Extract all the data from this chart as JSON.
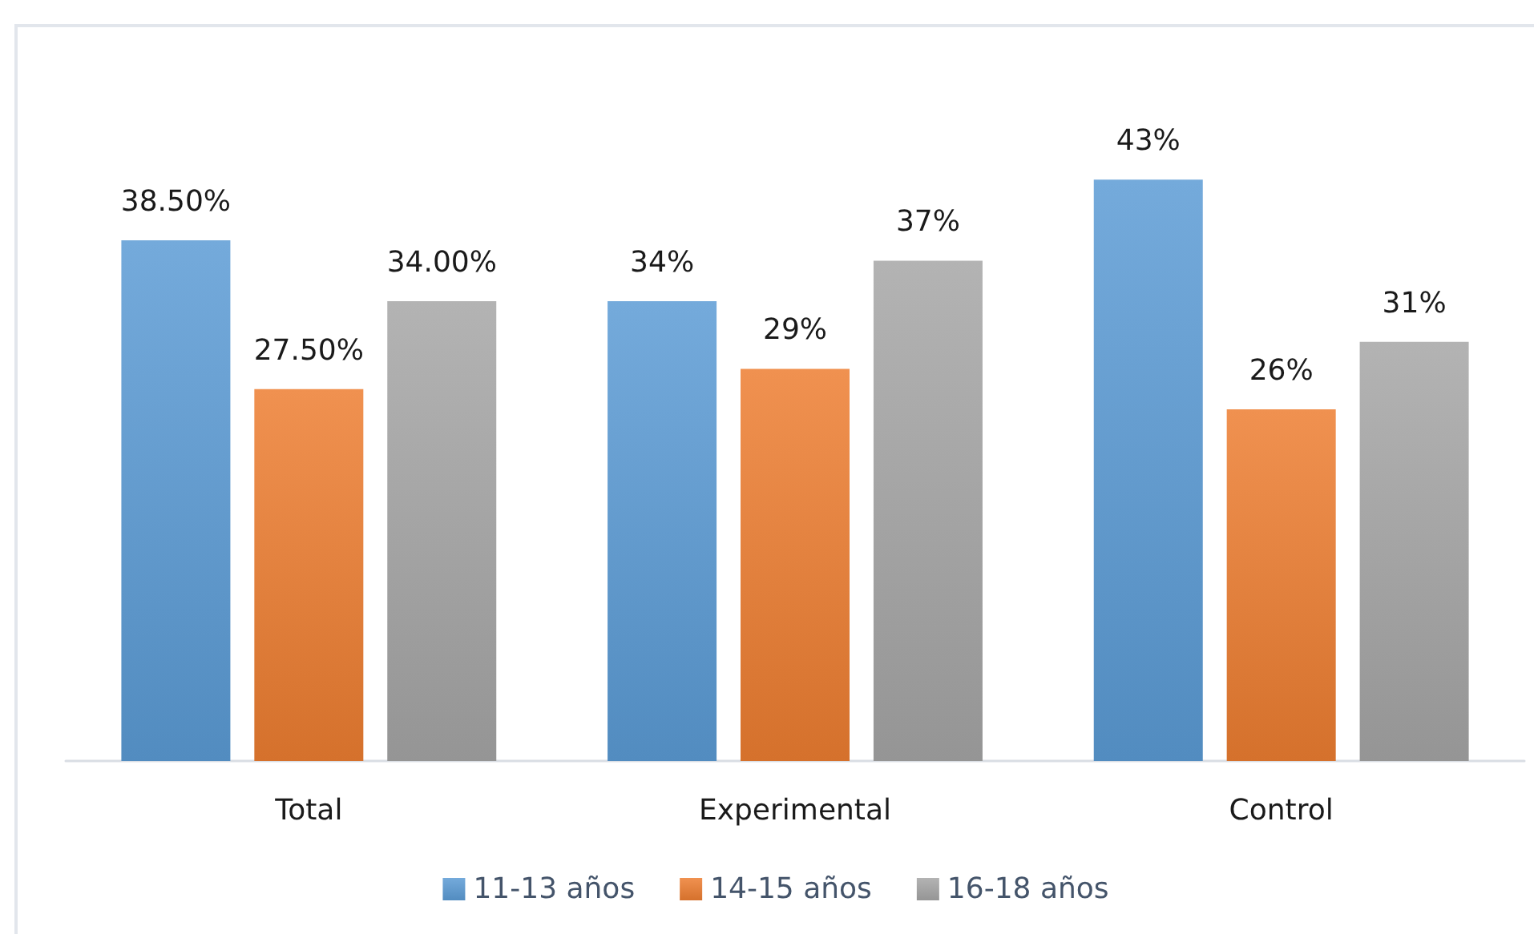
{
  "chart_data": {
    "type": "bar",
    "categories": [
      "Total",
      "Experimental",
      "Control"
    ],
    "series": [
      {
        "name": "11-13 años",
        "color": "#5b9bd5",
        "values": [
          38.5,
          34,
          43
        ],
        "value_labels": [
          "38.50%",
          "34%",
          "43%"
        ]
      },
      {
        "name": "14-15 años",
        "color": "#ed7d31",
        "values": [
          27.5,
          29,
          26
        ],
        "value_labels": [
          "27.50%",
          "29%",
          "26%"
        ]
      },
      {
        "name": "16-18 años",
        "color": "#a5a5a5",
        "values": [
          34,
          37,
          31
        ],
        "value_labels": [
          "34.00%",
          "37%",
          "31%"
        ]
      }
    ],
    "legend": "bottom"
  }
}
